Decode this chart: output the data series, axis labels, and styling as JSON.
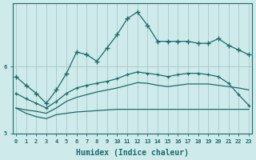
{
  "xlabel": "Humidex (Indice chaleur)",
  "background_color": "#ceeaea",
  "grid_color": "#a8c8c8",
  "line_color": "#1a6b6b",
  "x_values": [
    0,
    1,
    2,
    3,
    4,
    5,
    6,
    7,
    8,
    9,
    10,
    11,
    12,
    13,
    14,
    15,
    16,
    17,
    18,
    19,
    20,
    21,
    22,
    23
  ],
  "line1_y": [
    5.85,
    5.72,
    5.6,
    5.45,
    5.65,
    5.9,
    6.22,
    6.18,
    6.08,
    6.28,
    6.48,
    6.72,
    6.82,
    6.62,
    6.38,
    6.38,
    6.38,
    6.38,
    6.35,
    6.35,
    6.42,
    6.32,
    6.25,
    6.18
  ],
  "line2_y": [
    5.6,
    5.52,
    5.45,
    5.38,
    5.48,
    5.6,
    5.68,
    5.72,
    5.75,
    5.78,
    5.82,
    5.88,
    5.92,
    5.9,
    5.88,
    5.85,
    5.88,
    5.9,
    5.9,
    5.88,
    5.85,
    5.75,
    5.58,
    5.42
  ],
  "line3_y": [
    5.38,
    5.35,
    5.33,
    5.3,
    5.38,
    5.48,
    5.54,
    5.58,
    5.62,
    5.65,
    5.68,
    5.72,
    5.76,
    5.75,
    5.72,
    5.7,
    5.72,
    5.74,
    5.74,
    5.74,
    5.72,
    5.7,
    5.68,
    5.65
  ],
  "line4_y": [
    5.38,
    5.3,
    5.25,
    5.22,
    5.28,
    5.3,
    5.32,
    5.33,
    5.34,
    5.35,
    5.36,
    5.36,
    5.36,
    5.36,
    5.36,
    5.36,
    5.36,
    5.36,
    5.36,
    5.36,
    5.36,
    5.36,
    5.36,
    5.36
  ],
  "ylim": [
    5.1,
    6.95
  ],
  "yticks": [
    5.0,
    6.0
  ],
  "ytick_labels": [
    "5",
    "6"
  ],
  "xtick_labels": [
    "0",
    "1",
    "2",
    "3",
    "4",
    "5",
    "6",
    "7",
    "8",
    "9",
    "10",
    "11",
    "12",
    "13",
    "14",
    "15",
    "16",
    "17",
    "18",
    "19",
    "20",
    "21",
    "22",
    "23"
  ]
}
